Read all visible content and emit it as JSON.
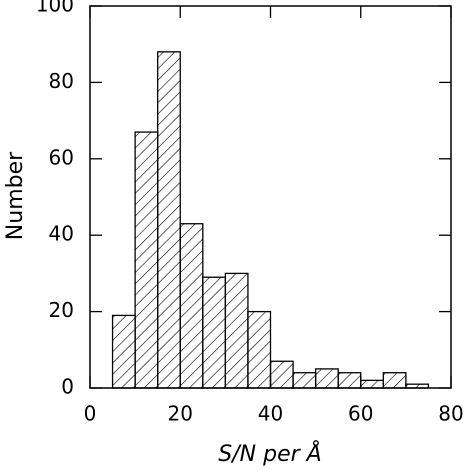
{
  "chart_data": {
    "type": "histogram",
    "xlabel": "S/N per Å",
    "ylabel": "Number",
    "bins": [
      5,
      10,
      15,
      20,
      25,
      30,
      35,
      40,
      45,
      50,
      55,
      60,
      65,
      70,
      75
    ],
    "values": [
      19,
      67,
      88,
      43,
      29,
      30,
      20,
      7,
      4,
      5,
      4,
      2,
      4,
      1
    ],
    "color": "#000000",
    "xlim": [
      0,
      80
    ],
    "xticks": [
      0,
      20,
      40,
      60,
      80
    ],
    "ylim": [
      0,
      100
    ],
    "yticks": [
      0,
      20,
      40,
      60,
      80,
      100
    ],
    "hatch": true
  }
}
